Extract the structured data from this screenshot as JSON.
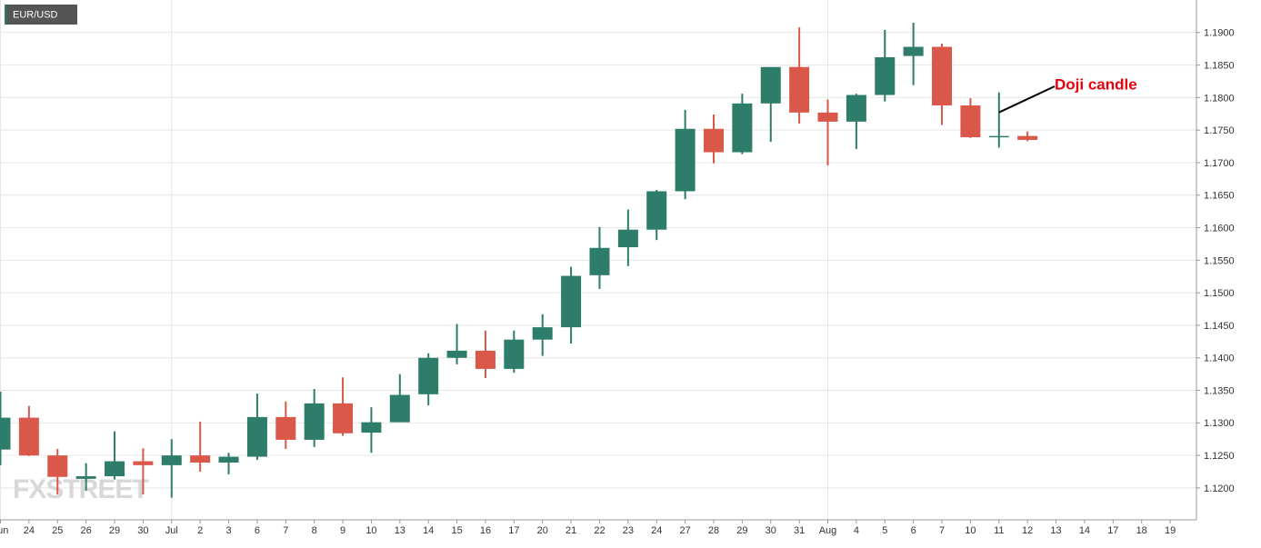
{
  "chart_data": {
    "type": "candlestick",
    "title": "EUR/USD",
    "watermark": "FXSTREET",
    "categories": [
      "Jun",
      "24",
      "25",
      "26",
      "29",
      "30",
      "Jul",
      "2",
      "3",
      "6",
      "7",
      "8",
      "9",
      "10",
      "13",
      "14",
      "15",
      "16",
      "17",
      "20",
      "21",
      "22",
      "23",
      "24",
      "27",
      "28",
      "29",
      "30",
      "31",
      "Aug",
      "4",
      "5",
      "6",
      "7",
      "10",
      "11",
      "12",
      "13",
      "14",
      "17",
      "18",
      "19"
    ],
    "open": [
      1.1259,
      1.1308,
      1.125,
      1.1214,
      1.1218,
      1.1241,
      1.1235,
      1.125,
      1.1239,
      1.1248,
      1.1309,
      1.1274,
      1.133,
      1.1285,
      1.1301,
      1.1344,
      1.14,
      1.1411,
      1.1383,
      1.1428,
      1.1447,
      1.1527,
      1.157,
      1.1597,
      1.1656,
      1.1752,
      1.1716,
      1.1791,
      1.1847,
      1.1777,
      1.1763,
      1.1804,
      1.1864,
      1.1878,
      1.1788,
      1.1739,
      1.1741,
      null,
      null,
      null,
      null,
      null
    ],
    "high": [
      1.1348,
      1.1326,
      1.126,
      1.1238,
      1.1287,
      1.1261,
      1.1275,
      1.1302,
      1.1254,
      1.1345,
      1.1333,
      1.1352,
      1.137,
      1.1324,
      1.1375,
      1.1407,
      1.1452,
      1.1442,
      1.1442,
      1.1467,
      1.154,
      1.1601,
      1.1628,
      1.1658,
      1.1781,
      1.1774,
      1.1806,
      1.1847,
      1.1908,
      1.1797,
      1.1806,
      1.1904,
      1.1915,
      1.1883,
      1.1799,
      1.1808,
      1.1748,
      null,
      null,
      null,
      null,
      null
    ],
    "low": [
      1.1235,
      1.1249,
      1.119,
      1.1196,
      1.1213,
      1.119,
      1.1185,
      1.1225,
      1.1221,
      1.1243,
      1.126,
      1.1263,
      1.128,
      1.1254,
      1.1301,
      1.1327,
      1.139,
      1.1369,
      1.1377,
      1.1403,
      1.1422,
      1.1506,
      1.1541,
      1.1581,
      1.1644,
      1.1699,
      1.1713,
      1.1732,
      1.176,
      1.1696,
      1.1721,
      1.1794,
      1.1819,
      1.1758,
      1.1738,
      1.1723,
      1.1733,
      null,
      null,
      null,
      null,
      null
    ],
    "close": [
      1.1308,
      1.125,
      1.1217,
      1.1218,
      1.1241,
      1.1235,
      1.125,
      1.1239,
      1.1248,
      1.1309,
      1.1274,
      1.133,
      1.1284,
      1.1301,
      1.1343,
      1.14,
      1.1411,
      1.1383,
      1.1428,
      1.1447,
      1.1526,
      1.1569,
      1.1597,
      1.1656,
      1.1752,
      1.1716,
      1.1791,
      1.1847,
      1.1777,
      1.1763,
      1.1804,
      1.1862,
      1.1878,
      1.1788,
      1.1739,
      1.1741,
      1.1735,
      null,
      null,
      null,
      null,
      null
    ],
    "up_color": "#2e7d6b",
    "down_color": "#d9584a",
    "ylim": [
      1.1151,
      1.195
    ],
    "yticks": [
      {
        "value": 1.12,
        "label": "1.1200"
      },
      {
        "value": 1.125,
        "label": "1.1250"
      },
      {
        "value": 1.13,
        "label": "1.1300"
      },
      {
        "value": 1.135,
        "label": "1.1350"
      },
      {
        "value": 1.14,
        "label": "1.1400"
      },
      {
        "value": 1.145,
        "label": "1.1450"
      },
      {
        "value": 1.15,
        "label": "1.1500"
      },
      {
        "value": 1.155,
        "label": "1.1550"
      },
      {
        "value": 1.16,
        "label": "1.1600"
      },
      {
        "value": 1.165,
        "label": "1.1650"
      },
      {
        "value": 1.17,
        "label": "1.1700"
      },
      {
        "value": 1.175,
        "label": "1.1750"
      },
      {
        "value": 1.18,
        "label": "1.1800"
      },
      {
        "value": 1.185,
        "label": "1.1850"
      },
      {
        "value": 1.19,
        "label": "1.1900"
      }
    ],
    "grid": true,
    "annotation": {
      "text": "Doji candle",
      "color": "#e8000b"
    }
  }
}
